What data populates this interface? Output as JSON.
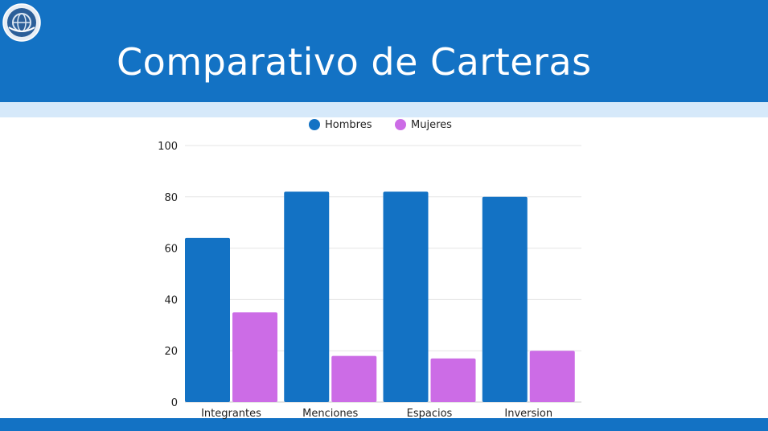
{
  "slide": {
    "title": "Comparativo de Carteras",
    "logo_icon": "globe-emblem-icon",
    "colors": {
      "header": "#1372c4",
      "strip": "#d6e9fa"
    }
  },
  "chart_data": {
    "type": "bar",
    "categories": [
      "Integrantes",
      "Menciones",
      "Espacios",
      "Inversion"
    ],
    "series": [
      {
        "name": "Hombres",
        "color": "#1372c4",
        "values": [
          64,
          82,
          82,
          80
        ]
      },
      {
        "name": "Mujeres",
        "color": "#cc6ce6",
        "values": [
          35,
          18,
          17,
          20
        ]
      }
    ],
    "ylim": [
      0,
      100
    ],
    "yticks": [
      0,
      20,
      40,
      60,
      80,
      100
    ],
    "grid": true,
    "legend_position": "top"
  }
}
